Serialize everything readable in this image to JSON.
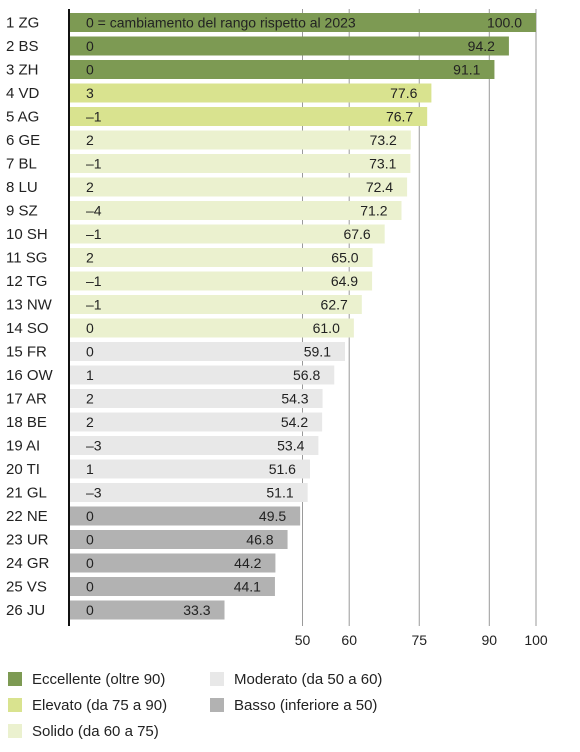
{
  "chart_data": {
    "type": "bar",
    "orientation": "horizontal",
    "annotation": "0 = cambiamento del rango rispetto al 2023",
    "categories": [
      "1 ZG",
      "2 BS",
      "3 ZH",
      "4 VD",
      "5 AG",
      "6 GE",
      "7 BL",
      "8 LU",
      "9 SZ",
      "10 SH",
      "11 SG",
      "12 TG",
      "13 NW",
      "14 SO",
      "15 FR",
      "16 OW",
      "17 AR",
      "18 BE",
      "19 AI",
      "20 TI",
      "21 GL",
      "22 NE",
      "23 UR",
      "24 GR",
      "25 VS",
      "26 JU"
    ],
    "values": [
      100.0,
      94.2,
      91.1,
      77.6,
      76.7,
      73.2,
      73.1,
      72.4,
      71.2,
      67.6,
      65.0,
      64.9,
      62.7,
      61.0,
      59.1,
      56.8,
      54.3,
      54.2,
      53.4,
      51.6,
      51.1,
      49.5,
      46.8,
      44.2,
      44.1,
      33.3
    ],
    "value_labels": [
      "100.0",
      "94.2",
      "91.1",
      "77.6",
      "76.7",
      "73.2",
      "73.1",
      "72.4",
      "71.2",
      "67.6",
      "65.0",
      "64.9",
      "62.7",
      "61.0",
      "59.1",
      "56.8",
      "54.3",
      "54.2",
      "53.4",
      "51.6",
      "51.1",
      "49.5",
      "46.8",
      "44.2",
      "44.1",
      "33.3"
    ],
    "rank_change": [
      "0",
      "0",
      "0",
      "3",
      "–1",
      "2",
      "–1",
      "2",
      "–4",
      "–1",
      "2",
      "–1",
      "–1",
      "0",
      "0",
      "1",
      "2",
      "2",
      "–3",
      "1",
      "–3",
      "0",
      "0",
      "0",
      "0",
      "0"
    ],
    "category_class": [
      0,
      0,
      0,
      1,
      1,
      2,
      2,
      2,
      2,
      2,
      2,
      2,
      2,
      2,
      3,
      3,
      3,
      3,
      3,
      3,
      3,
      4,
      4,
      4,
      4,
      4
    ],
    "xlim": [
      0,
      100
    ],
    "xticks": [
      50,
      60,
      75,
      90,
      100
    ],
    "xtick_labels": [
      "50",
      "60",
      "75",
      "90",
      "100"
    ],
    "grid": "vertical at ticks",
    "legend_position": "bottom",
    "legend": [
      {
        "label": "Eccellente (oltre 90)",
        "color": "#7d9a53"
      },
      {
        "label": "Elevato (da 75 a 90)",
        "color": "#d9e38f"
      },
      {
        "label": "Solido (da 60 a 75)",
        "color": "#ebf1cf"
      },
      {
        "label": "Moderato (da 50 a 60)",
        "color": "#e8e8e8"
      },
      {
        "label": "Basso (inferiore a 50)",
        "color": "#b2b2b2"
      }
    ]
  }
}
